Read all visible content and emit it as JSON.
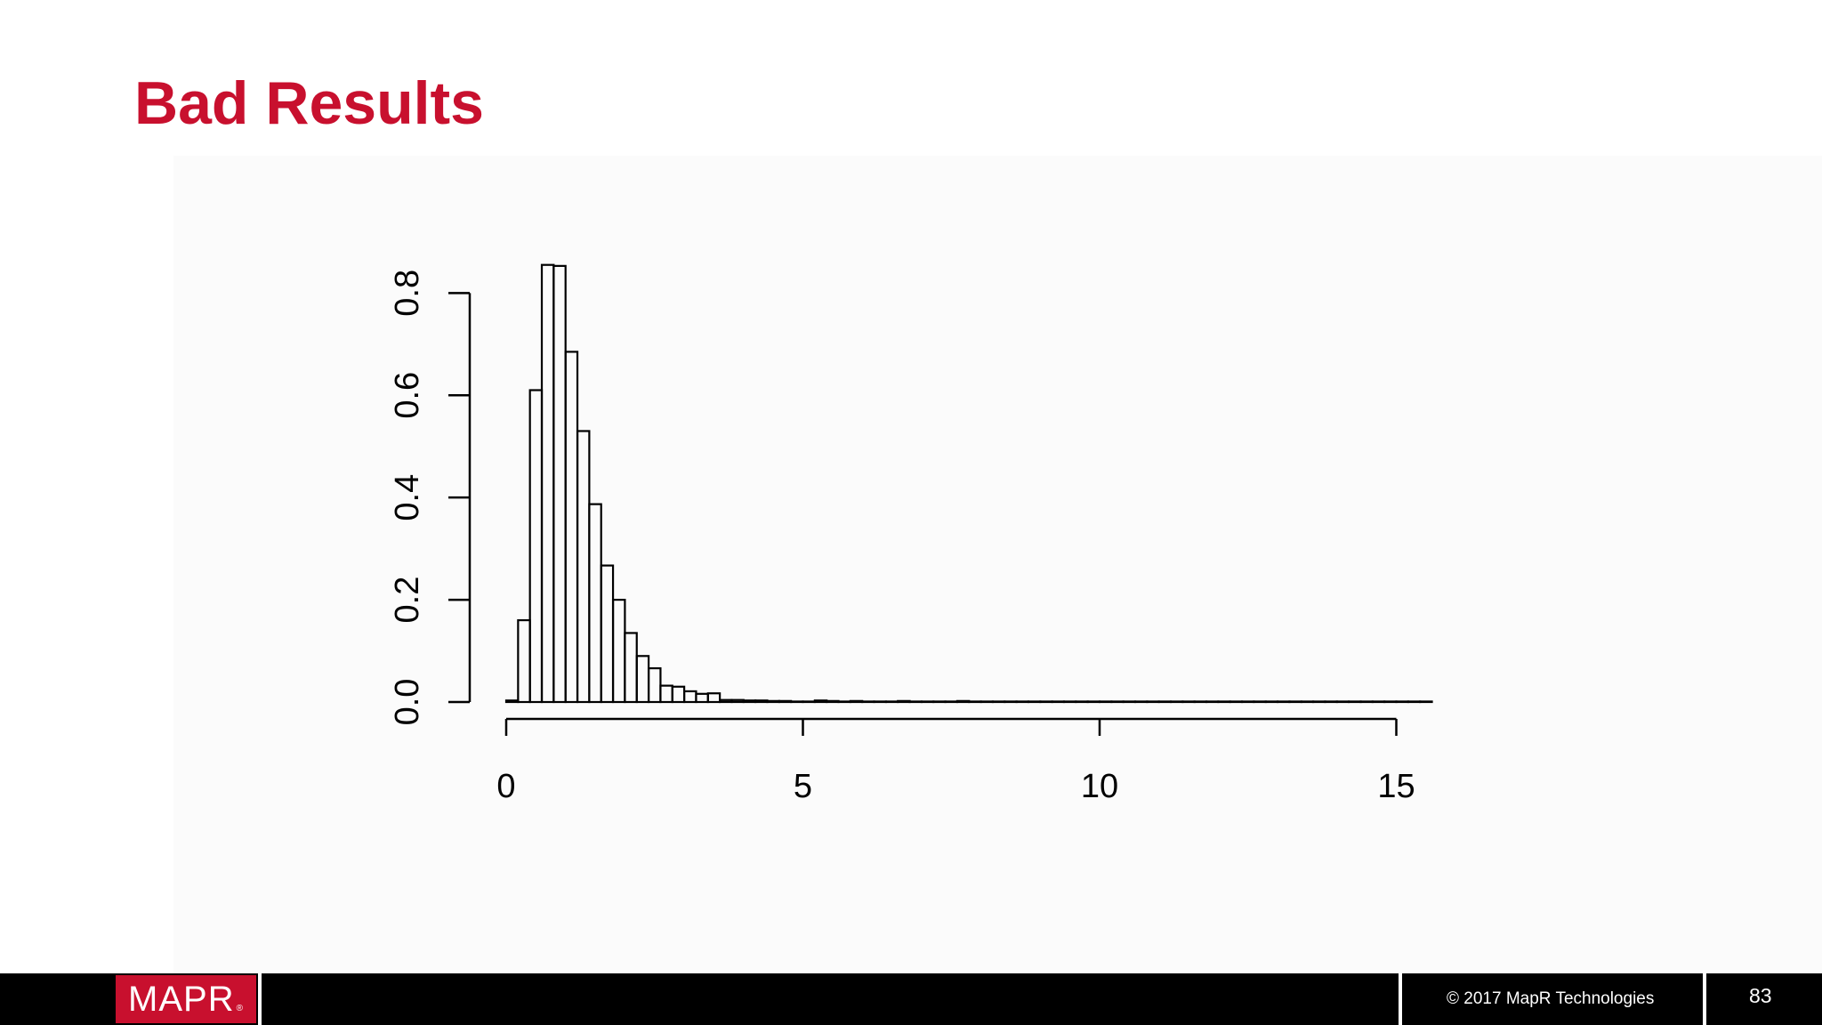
{
  "slide": {
    "title": "Bad Results",
    "page_number": "83"
  },
  "footer": {
    "logo_text": "MAPR",
    "logo_mark": "®",
    "copyright": "© 2017 MapR Technologies"
  },
  "chart_data": {
    "type": "bar",
    "title": "",
    "xlabel": "",
    "ylabel": "",
    "xlim": [
      0,
      15.5
    ],
    "ylim": [
      0,
      0.8
    ],
    "xticks": [
      0,
      5,
      10,
      15
    ],
    "yticks": [
      0.0,
      0.2,
      0.4,
      0.6,
      0.8
    ],
    "xtick_labels": [
      "0",
      "5",
      "10",
      "15"
    ],
    "ytick_labels": [
      "0.0",
      "0.2",
      "0.4",
      "0.6",
      "0.8"
    ],
    "bin_width": 0.2,
    "bin_start": 0,
    "values": [
      0.003,
      0.16,
      0.61,
      0.855,
      0.853,
      0.685,
      0.53,
      0.387,
      0.267,
      0.2,
      0.135,
      0.09,
      0.066,
      0.032,
      0.03,
      0.021,
      0.016,
      0.017,
      0.004,
      0.004,
      0.003,
      0.003,
      0.002,
      0.002,
      0.001,
      0.001,
      0.003,
      0.002,
      0.001,
      0.002,
      0.001,
      0.001,
      0.001,
      0.002,
      0.001,
      0.001,
      0.001,
      0.001,
      0.002,
      0.001,
      0.001,
      0.001,
      0.001,
      0.001,
      0.001,
      0.001,
      0.001,
      0.001,
      0.001,
      0.001,
      0.001,
      0.001,
      0.001,
      0.001,
      0.001,
      0.001,
      0.001,
      0.001,
      0.001,
      0.001,
      0.001,
      0.001,
      0.001,
      0.001,
      0.001,
      0.001,
      0.001,
      0.001,
      0.001,
      0.001,
      0.001,
      0.001,
      0.001,
      0.001,
      0.001,
      0.001,
      0.001,
      0.001
    ]
  }
}
